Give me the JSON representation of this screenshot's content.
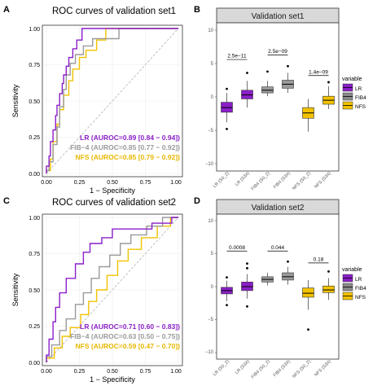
{
  "panels": [
    {
      "letter": "A",
      "title": "ROC curves of validation set1",
      "xlabel": "1 − Specificity",
      "ylabel": "Sensitivity",
      "ticks": [
        "0.00",
        "0.25",
        "0.50",
        "0.75",
        "1.00"
      ],
      "legend": [
        {
          "text": "LR (AUROC=0.89 [0.84 − 0.94])",
          "color": "#8B1FC8"
        },
        {
          "text": "FIB−4 (AUROC=0.85 [0.77 − 0.92])",
          "color": "#9A9A9A"
        },
        {
          "text": "NFS (AUROC=0.85 [0.79 − 0.92])",
          "color": "#F2C200"
        }
      ]
    },
    {
      "letter": "B",
      "title": "Validation set1",
      "yticks": [
        "10",
        "5",
        "0",
        "−5",
        "−10"
      ],
      "categories": [
        "LR (S0_2)",
        "LR (S34)",
        "FIB4 (S0_2)",
        "FIB4 (S34)",
        "NFS (S0_2)",
        "NFS (S34)"
      ],
      "pvalues": [
        "2.5e−11",
        "2.5e−09",
        "1.4e−09"
      ],
      "legend_title": "variable",
      "legend": [
        "LR",
        "FIB4",
        "NFS"
      ]
    },
    {
      "letter": "C",
      "title": "ROC curves of validation set2",
      "xlabel": "1 − Specificity",
      "ylabel": "Sensitivity",
      "ticks": [
        "0.00",
        "0.25",
        "0.50",
        "0.75",
        "1.00"
      ],
      "legend": [
        {
          "text": "LR (AUROC=0.71 [0.60 − 0.83])",
          "color": "#8B1FC8"
        },
        {
          "text": "FIB−4 (AUROC=0.63 [0.50 − 0.75])",
          "color": "#9A9A9A"
        },
        {
          "text": "NFS (AUROC=0.59 [0.47 − 0.70])",
          "color": "#F2C200"
        }
      ]
    },
    {
      "letter": "D",
      "title": "Validation set2",
      "yticks": [
        "10",
        "5",
        "0",
        "−5",
        "−10"
      ],
      "categories": [
        "LR (S0_2)",
        "LR (S34)",
        "FIB4 (S0_2)",
        "FIB4 (S34)",
        "NFS (S0_2)",
        "NFS (S34)"
      ],
      "pvalues": [
        "0.0008",
        "0.044",
        "0.18"
      ],
      "legend_title": "variable",
      "legend": [
        "LR",
        "FIB4",
        "NFS"
      ]
    }
  ],
  "colors": {
    "LR": "#8B1FC8",
    "FIB4": "#9A9A9A",
    "NFS": "#F2C200"
  },
  "chart_data": [
    {
      "type": "line",
      "title": "ROC curves of validation set1",
      "xlabel": "1 − Specificity",
      "ylabel": "Sensitivity",
      "xlim": [
        0,
        1
      ],
      "ylim": [
        0,
        1
      ],
      "series": [
        {
          "name": "LR (AUROC=0.89 [0.84 − 0.94])",
          "points": [
            [
              0,
              0
            ],
            [
              0,
              0.05
            ],
            [
              0.02,
              0.05
            ],
            [
              0.02,
              0.12
            ],
            [
              0.03,
              0.12
            ],
            [
              0.03,
              0.22
            ],
            [
              0.05,
              0.22
            ],
            [
              0.05,
              0.3
            ],
            [
              0.07,
              0.3
            ],
            [
              0.07,
              0.4
            ],
            [
              0.08,
              0.4
            ],
            [
              0.08,
              0.47
            ],
            [
              0.1,
              0.47
            ],
            [
              0.1,
              0.55
            ],
            [
              0.12,
              0.55
            ],
            [
              0.12,
              0.62
            ],
            [
              0.13,
              0.62
            ],
            [
              0.13,
              0.68
            ],
            [
              0.15,
              0.68
            ],
            [
              0.15,
              0.74
            ],
            [
              0.17,
              0.74
            ],
            [
              0.17,
              0.8
            ],
            [
              0.2,
              0.8
            ],
            [
              0.2,
              0.86
            ],
            [
              0.23,
              0.86
            ],
            [
              0.23,
              0.92
            ],
            [
              0.27,
              0.92
            ],
            [
              0.27,
              1.0
            ],
            [
              1,
              1
            ]
          ]
        },
        {
          "name": "FIB−4 (AUROC=0.85 [0.77 − 0.92])",
          "points": [
            [
              0,
              0
            ],
            [
              0,
              0.02
            ],
            [
              0.02,
              0.02
            ],
            [
              0.02,
              0.08
            ],
            [
              0.05,
              0.08
            ],
            [
              0.05,
              0.2
            ],
            [
              0.08,
              0.2
            ],
            [
              0.08,
              0.32
            ],
            [
              0.1,
              0.32
            ],
            [
              0.1,
              0.46
            ],
            [
              0.13,
              0.46
            ],
            [
              0.13,
              0.58
            ],
            [
              0.15,
              0.58
            ],
            [
              0.15,
              0.68
            ],
            [
              0.18,
              0.68
            ],
            [
              0.18,
              0.76
            ],
            [
              0.22,
              0.76
            ],
            [
              0.22,
              0.82
            ],
            [
              0.28,
              0.82
            ],
            [
              0.28,
              0.88
            ],
            [
              0.35,
              0.88
            ],
            [
              0.35,
              0.93
            ],
            [
              0.55,
              0.93
            ],
            [
              0.55,
              1.0
            ],
            [
              1,
              1
            ]
          ]
        },
        {
          "name": "NFS (AUROC=0.85 [0.79 − 0.92])",
          "points": [
            [
              0,
              0
            ],
            [
              0,
              0.02
            ],
            [
              0.03,
              0.02
            ],
            [
              0.03,
              0.1
            ],
            [
              0.05,
              0.1
            ],
            [
              0.05,
              0.22
            ],
            [
              0.08,
              0.22
            ],
            [
              0.08,
              0.34
            ],
            [
              0.1,
              0.34
            ],
            [
              0.1,
              0.44
            ],
            [
              0.13,
              0.44
            ],
            [
              0.13,
              0.54
            ],
            [
              0.17,
              0.54
            ],
            [
              0.17,
              0.64
            ],
            [
              0.2,
              0.64
            ],
            [
              0.2,
              0.72
            ],
            [
              0.25,
              0.72
            ],
            [
              0.25,
              0.8
            ],
            [
              0.3,
              0.8
            ],
            [
              0.3,
              0.85
            ],
            [
              0.38,
              0.85
            ],
            [
              0.38,
              0.92
            ],
            [
              0.45,
              0.92
            ],
            [
              0.45,
              1.0
            ],
            [
              1,
              1
            ]
          ]
        }
      ]
    },
    {
      "type": "box",
      "title": "Validation set1",
      "ylim": [
        -10.5,
        10.5
      ],
      "categories": [
        "LR (S0_2)",
        "LR (S34)",
        "FIB4 (S0_2)",
        "FIB4 (S34)",
        "NFS (S0_2)",
        "NFS (S34)"
      ],
      "groups": [
        "LR",
        "LR",
        "FIB4",
        "FIB4",
        "NFS",
        "NFS"
      ],
      "boxes": [
        {
          "q1": -2.3,
          "median": -1.6,
          "q3": -0.8,
          "whisker_low": -3.8,
          "whisker_high": 0.6,
          "outliers": [
            -4.8,
            1.2
          ]
        },
        {
          "q1": -0.3,
          "median": 0.3,
          "q3": 1.0,
          "whisker_low": -1.6,
          "whisker_high": 2.4,
          "outliers": [
            3.6
          ]
        },
        {
          "q1": 0.6,
          "median": 1.0,
          "q3": 1.5,
          "whisker_low": 0.1,
          "whisker_high": 2.4,
          "outliers": [
            3.8
          ]
        },
        {
          "q1": 1.3,
          "median": 1.9,
          "q3": 2.5,
          "whisker_low": 0.6,
          "whisker_high": 3.6,
          "outliers": [
            4.6
          ]
        },
        {
          "q1": -3.2,
          "median": -2.4,
          "q3": -1.6,
          "whisker_low": -5.2,
          "whisker_high": -0.3,
          "outliers": []
        },
        {
          "q1": -1.1,
          "median": -0.5,
          "q3": 0.1,
          "whisker_low": -1.8,
          "whisker_high": 1.6,
          "outliers": [
            2.2
          ]
        }
      ],
      "comparisons": [
        {
          "pair": [
            "LR (S0_2)",
            "LR (S34)"
          ],
          "label": "2.5e−11",
          "y": 5.6
        },
        {
          "pair": [
            "FIB4 (S0_2)",
            "FIB4 (S34)"
          ],
          "label": "2.5e−09",
          "y": 6.3
        },
        {
          "pair": [
            "NFS (S0_2)",
            "NFS (S34)"
          ],
          "label": "1.4e−09",
          "y": 3.2
        }
      ]
    },
    {
      "type": "line",
      "title": "ROC curves of validation set2",
      "xlabel": "1 − Specificity",
      "ylabel": "Sensitivity",
      "xlim": [
        0,
        1
      ],
      "ylim": [
        0,
        1
      ],
      "series": [
        {
          "name": "LR (AUROC=0.71 [0.60 − 0.83])",
          "points": [
            [
              0,
              0
            ],
            [
              0,
              0.05
            ],
            [
              0.02,
              0.05
            ],
            [
              0.02,
              0.16
            ],
            [
              0.05,
              0.16
            ],
            [
              0.05,
              0.28
            ],
            [
              0.07,
              0.28
            ],
            [
              0.07,
              0.38
            ],
            [
              0.1,
              0.38
            ],
            [
              0.1,
              0.48
            ],
            [
              0.15,
              0.48
            ],
            [
              0.15,
              0.58
            ],
            [
              0.22,
              0.58
            ],
            [
              0.22,
              0.68
            ],
            [
              0.28,
              0.68
            ],
            [
              0.28,
              0.76
            ],
            [
              0.33,
              0.76
            ],
            [
              0.33,
              0.82
            ],
            [
              0.42,
              0.82
            ],
            [
              0.42,
              0.86
            ],
            [
              0.5,
              0.86
            ],
            [
              0.5,
              0.92
            ],
            [
              0.8,
              0.92
            ],
            [
              0.8,
              0.96
            ],
            [
              0.95,
              0.96
            ],
            [
              0.95,
              1.0
            ],
            [
              1,
              1
            ]
          ]
        },
        {
          "name": "FIB−4 (AUROC=0.63 [0.50 − 0.75])",
          "points": [
            [
              0,
              0
            ],
            [
              0,
              0.04
            ],
            [
              0.04,
              0.04
            ],
            [
              0.04,
              0.12
            ],
            [
              0.1,
              0.12
            ],
            [
              0.1,
              0.22
            ],
            [
              0.15,
              0.22
            ],
            [
              0.15,
              0.3
            ],
            [
              0.22,
              0.3
            ],
            [
              0.22,
              0.4
            ],
            [
              0.28,
              0.4
            ],
            [
              0.28,
              0.48
            ],
            [
              0.34,
              0.48
            ],
            [
              0.34,
              0.58
            ],
            [
              0.4,
              0.58
            ],
            [
              0.4,
              0.66
            ],
            [
              0.48,
              0.66
            ],
            [
              0.48,
              0.74
            ],
            [
              0.56,
              0.74
            ],
            [
              0.56,
              0.82
            ],
            [
              0.64,
              0.82
            ],
            [
              0.64,
              0.88
            ],
            [
              0.76,
              0.88
            ],
            [
              0.76,
              0.94
            ],
            [
              0.88,
              0.94
            ],
            [
              0.88,
              1.0
            ],
            [
              1,
              1
            ]
          ]
        },
        {
          "name": "NFS (AUROC=0.59 [0.47 − 0.70])",
          "points": [
            [
              0,
              0
            ],
            [
              0,
              0.03
            ],
            [
              0.06,
              0.03
            ],
            [
              0.06,
              0.1
            ],
            [
              0.12,
              0.1
            ],
            [
              0.12,
              0.18
            ],
            [
              0.18,
              0.18
            ],
            [
              0.18,
              0.24
            ],
            [
              0.26,
              0.24
            ],
            [
              0.26,
              0.33
            ],
            [
              0.32,
              0.33
            ],
            [
              0.32,
              0.42
            ],
            [
              0.38,
              0.42
            ],
            [
              0.38,
              0.5
            ],
            [
              0.46,
              0.5
            ],
            [
              0.46,
              0.6
            ],
            [
              0.54,
              0.6
            ],
            [
              0.54,
              0.7
            ],
            [
              0.62,
              0.7
            ],
            [
              0.62,
              0.78
            ],
            [
              0.72,
              0.78
            ],
            [
              0.72,
              0.86
            ],
            [
              0.84,
              0.86
            ],
            [
              0.84,
              0.94
            ],
            [
              0.94,
              0.94
            ],
            [
              0.94,
              1.0
            ],
            [
              1,
              1
            ]
          ]
        }
      ]
    },
    {
      "type": "box",
      "title": "Validation set2",
      "ylim": [
        -10.5,
        10.5
      ],
      "categories": [
        "LR (S0_2)",
        "LR (S34)",
        "FIB4 (S0_2)",
        "FIB4 (S34)",
        "NFS (S0_2)",
        "NFS (S34)"
      ],
      "groups": [
        "LR",
        "LR",
        "FIB4",
        "FIB4",
        "NFS",
        "NFS"
      ],
      "boxes": [
        {
          "q1": -1.1,
          "median": -0.6,
          "q3": -0.1,
          "whisker_low": -2.2,
          "whisker_high": 0.9,
          "outliers": [
            -2.8,
            1.4
          ]
        },
        {
          "q1": -0.6,
          "median": 0.0,
          "q3": 0.7,
          "whisker_low": -1.8,
          "whisker_high": 1.9,
          "outliers": [
            -3.0,
            2.8,
            3.5
          ]
        },
        {
          "q1": 0.7,
          "median": 1.1,
          "q3": 1.5,
          "whisker_low": 0.2,
          "whisker_high": 2.1,
          "outliers": []
        },
        {
          "q1": 1.0,
          "median": 1.5,
          "q3": 2.1,
          "whisker_low": 0.3,
          "whisker_high": 3.0,
          "outliers": [
            3.8
          ]
        },
        {
          "q1": -1.6,
          "median": -1.0,
          "q3": -0.2,
          "whisker_low": -3.5,
          "whisker_high": 1.0,
          "outliers": [
            -6.5
          ]
        },
        {
          "q1": -0.9,
          "median": -0.5,
          "q3": 0.1,
          "whisker_low": -2.0,
          "whisker_high": 1.3,
          "outliers": [
            2.3
          ]
        }
      ],
      "comparisons": [
        {
          "pair": [
            "LR (S0_2)",
            "LR (S34)"
          ],
          "label": "0.0008",
          "y": 5.4
        },
        {
          "pair": [
            "FIB4 (S0_2)",
            "FIB4 (S34)"
          ],
          "label": "0.044",
          "y": 5.4
        },
        {
          "pair": [
            "NFS (S0_2)",
            "NFS (S34)"
          ],
          "label": "0.18",
          "y": 3.6
        }
      ]
    }
  ]
}
